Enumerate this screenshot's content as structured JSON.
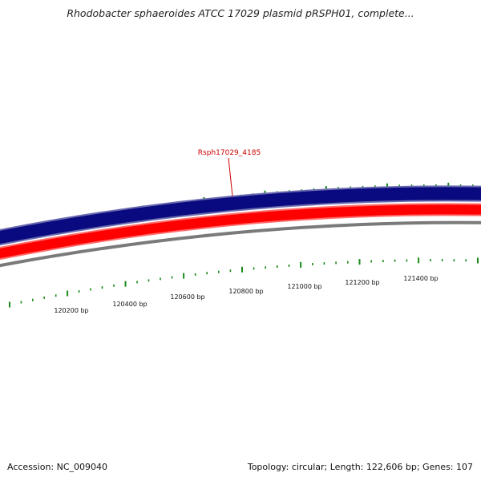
{
  "title": "Rhodobacter sphaeroides ATCC 17029 plasmid pRSPH01, complete...",
  "colors": {
    "forward_strand": "#0a0a80",
    "reverse_strand": "#ff0000",
    "backbone": "#7a7a7a",
    "tick": "#1a8a1a",
    "gene_label": "#cc0000"
  },
  "gene_label": "Rsph17029_4185",
  "ruler": {
    "labels": [
      "120200 bp",
      "120400 bp",
      "120600 bp",
      "120800 bp",
      "121000 bp",
      "121200 bp",
      "121400 bp"
    ]
  },
  "footer": {
    "accession": "Accession: NC_009040",
    "summary": "Topology: circular; Length: 122,606 bp; Genes: 107"
  }
}
